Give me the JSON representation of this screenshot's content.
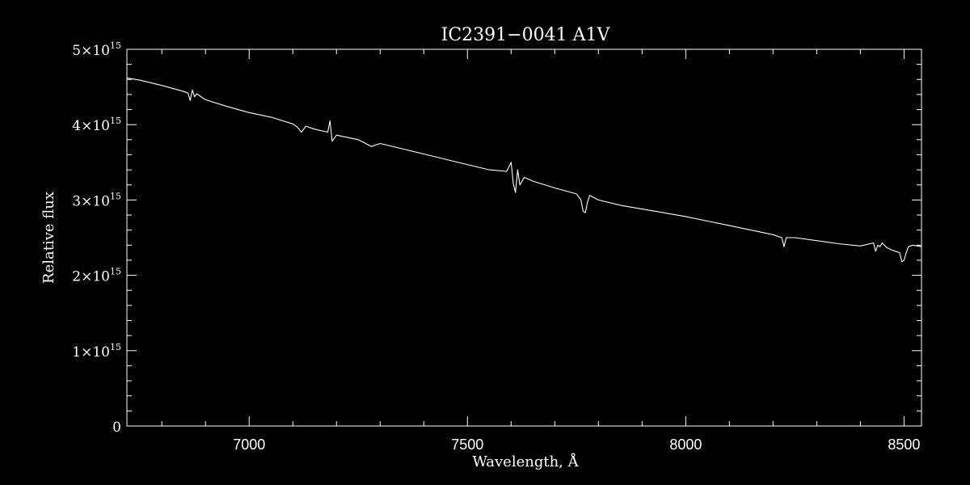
{
  "chart_data": {
    "type": "line",
    "title": "IC2391−0041   A1V",
    "xlabel": "Wavelength, Å",
    "ylabel": "Relative flux",
    "xlim": [
      6720,
      8540
    ],
    "ylim": [
      0,
      5000000000000000.0
    ],
    "x_ticks": [
      7000,
      7500,
      8000,
      8500
    ],
    "x_tick_labels": [
      "7000",
      "7500",
      "8000",
      "8500"
    ],
    "x_minor_step": 100,
    "y_ticks": [
      0,
      1000000000000000.0,
      2000000000000000.0,
      3000000000000000.0,
      4000000000000000.0,
      5000000000000000.0
    ],
    "y_tick_labels": [
      {
        "mant": "0",
        "exp": ""
      },
      {
        "mant": "1×10",
        "exp": "15"
      },
      {
        "mant": "2×10",
        "exp": "15"
      },
      {
        "mant": "3×10",
        "exp": "15"
      },
      {
        "mant": "4×10",
        "exp": "15"
      },
      {
        "mant": "5×10",
        "exp": "15"
      }
    ],
    "y_minor_step": 200000000000000.0,
    "grid": false,
    "colors": {
      "background": "#000000",
      "foreground": "#ffffff"
    },
    "series": [
      {
        "x": [
          6720,
          6750,
          6800,
          6850,
          6860,
          6865,
          6870,
          6875,
          6880,
          6900,
          6950,
          7000,
          7050,
          7100,
          7110,
          7120,
          7130,
          7150,
          7180,
          7185,
          7190,
          7200,
          7250,
          7280,
          7300,
          7350,
          7400,
          7450,
          7500,
          7550,
          7590,
          7600,
          7605,
          7610,
          7615,
          7620,
          7630,
          7650,
          7700,
          7750,
          7760,
          7765,
          7770,
          7775,
          7780,
          7800,
          7850,
          7900,
          7950,
          8000,
          8050,
          8100,
          8150,
          8200,
          8220,
          8225,
          8230,
          8250,
          8300,
          8350,
          8400,
          8430,
          8435,
          8440,
          8445,
          8450,
          8460,
          8470,
          8480,
          8490,
          8495,
          8500,
          8505,
          8510,
          8520,
          8540
        ],
        "y": [
          4620000000000000.0,
          4590000000000000.0,
          4520000000000000.0,
          4440000000000000.0,
          4420000000000000.0,
          4320000000000000.0,
          4460000000000000.0,
          4370000000000000.0,
          4410000000000000.0,
          4330000000000000.0,
          4240000000000000.0,
          4160000000000000.0,
          4100000000000000.0,
          4010000000000000.0,
          3970000000000000.0,
          3900000000000000.0,
          3980000000000000.0,
          3940000000000000.0,
          3900000000000000.0,
          4050000000000000.0,
          3780000000000000.0,
          3860000000000000.0,
          3800000000000000.0,
          3710000000000000.0,
          3750000000000000.0,
          3680000000000000.0,
          3610000000000000.0,
          3540000000000000.0,
          3470000000000000.0,
          3400000000000000.0,
          3380000000000000.0,
          3500000000000000.0,
          3220000000000000.0,
          3100000000000000.0,
          3400000000000000.0,
          3200000000000000.0,
          3300000000000000.0,
          3250000000000000.0,
          3160000000000000.0,
          3080000000000000.0,
          3000000000000000.0,
          2850000000000000.0,
          2830000000000000.0,
          2970000000000000.0,
          3060000000000000.0,
          3000000000000000.0,
          2930000000000000.0,
          2880000000000000.0,
          2830000000000000.0,
          2780000000000000.0,
          2720000000000000.0,
          2660000000000000.0,
          2600000000000000.0,
          2540000000000000.0,
          2500000000000000.0,
          2380000000000000.0,
          2500000000000000.0,
          2500000000000000.0,
          2460000000000000.0,
          2420000000000000.0,
          2390000000000000.0,
          2430000000000000.0,
          2320000000000000.0,
          2400000000000000.0,
          2380000000000000.0,
          2430000000000000.0,
          2370000000000000.0,
          2340000000000000.0,
          2320000000000000.0,
          2300000000000000.0,
          2180000000000000.0,
          2200000000000000.0,
          2300000000000000.0,
          2380000000000000.0,
          2400000000000000.0,
          2380000000000000.0
        ]
      }
    ]
  }
}
